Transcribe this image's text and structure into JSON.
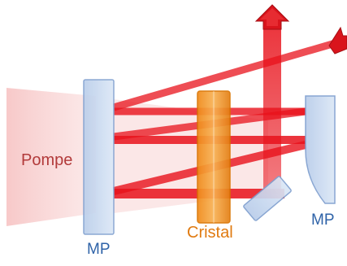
{
  "labels": {
    "pump": "Pompe",
    "crystal": "Cristal",
    "mirror_left": "MP",
    "mirror_right": "MP"
  },
  "colors": {
    "pump_light": "#f6c9c9",
    "beam": "#e8121b",
    "crystal_fill": "#f4a340",
    "mirror_fill": "#c5d7ef",
    "mirror_stroke": "#7f9fcf",
    "pump_text": "#b23a3a",
    "crystal_text": "#e07a10",
    "mirror_text": "#2f63a8"
  },
  "icons": [
    "output-arrow-icon",
    "input-arrow-icon"
  ]
}
